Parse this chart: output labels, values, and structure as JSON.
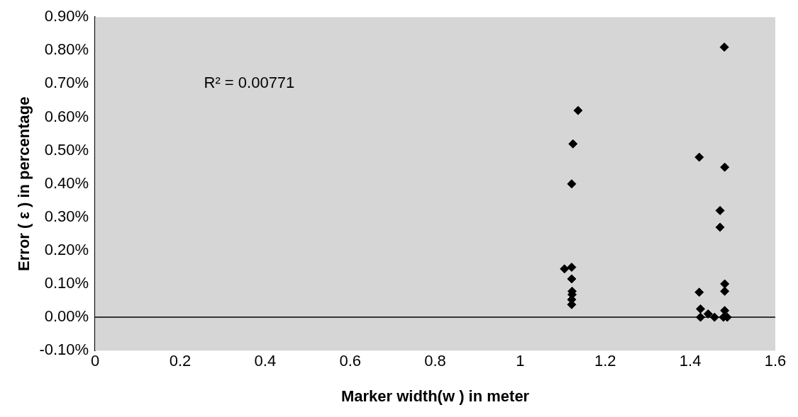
{
  "chart_data": {
    "type": "scatter",
    "xlabel": "Marker width(w ) in meter",
    "ylabel": "Error ( ε ) in percentage",
    "annotations": [
      "R² = 0.00771"
    ],
    "series": [
      {
        "color": "#000000",
        "x": [
          1.136,
          1.124,
          1.121,
          1.421,
          1.481,
          1.47,
          1.47,
          1.104,
          1.121,
          1.121,
          1.122,
          1.122,
          1.121,
          1.121,
          1.421,
          1.481,
          1.481,
          1.424,
          1.481,
          1.424,
          1.442,
          1.457,
          1.478,
          1.487,
          1.48
        ],
        "values": [
          0.62,
          0.52,
          0.4,
          0.48,
          0.45,
          0.32,
          0.27,
          0.145,
          0.15,
          0.115,
          0.078,
          0.068,
          0.053,
          0.038,
          0.075,
          0.1,
          0.078,
          0.025,
          0.02,
          0,
          0.01,
          0,
          0,
          0,
          0.81
        ]
      }
    ],
    "marker": "diamond",
    "xlim": [
      0,
      1.6
    ],
    "xticks": [
      0,
      0.2,
      0.4,
      0.6,
      0.8,
      1,
      1.2,
      1.4,
      1.6
    ],
    "ylim": [
      -0.1,
      0.9
    ],
    "yticks": [
      {
        "value": -0.1,
        "label": "-0.10%"
      },
      {
        "value": 0,
        "label": "0.00%"
      },
      {
        "value": 0.1,
        "label": "0.10%"
      },
      {
        "value": 0.2,
        "label": "0.20%"
      },
      {
        "value": 0.3,
        "label": "0.30%"
      },
      {
        "value": 0.4,
        "label": "0.40%"
      },
      {
        "value": 0.5,
        "label": "0.50%"
      },
      {
        "value": 0.6,
        "label": "0.60%"
      },
      {
        "value": 0.7,
        "label": "0.70%"
      },
      {
        "value": 0.8,
        "label": "0.80%"
      },
      {
        "value": 0.9,
        "label": "0.90%"
      }
    ],
    "ref_lines": [
      {
        "axis": "y",
        "value": 0,
        "color": "#000000"
      }
    ],
    "grid": false,
    "legend": false
  }
}
